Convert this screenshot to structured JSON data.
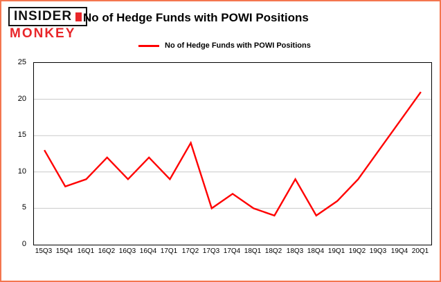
{
  "logo": {
    "line1": "INSIDER",
    "line2": "MONKEY"
  },
  "header": {
    "title": "No of Hedge Funds with POWI Positions"
  },
  "legend": {
    "label": "No of Hedge Funds with POWI Positions"
  },
  "colors": {
    "page_border": "#f4764f",
    "line": "#ff0000",
    "grid": "#c9c9c9",
    "plot_border": "#000000",
    "logo_red": "#e8262a"
  },
  "chart_data": {
    "type": "line",
    "title": "No of Hedge Funds with POWI Positions",
    "series_name": "No of Hedge Funds with POWI Positions",
    "categories": [
      "15Q3",
      "15Q4",
      "16Q1",
      "16Q2",
      "16Q3",
      "16Q4",
      "17Q1",
      "17Q2",
      "17Q3",
      "17Q4",
      "18Q1",
      "18Q2",
      "18Q3",
      "18Q4",
      "19Q1",
      "19Q2",
      "19Q3",
      "19Q4",
      "20Q1"
    ],
    "values": [
      13,
      8,
      9,
      12,
      9,
      12,
      9,
      14,
      5,
      7,
      5,
      4,
      9,
      4,
      6,
      9,
      13,
      17,
      21
    ],
    "ylim": [
      0,
      25
    ],
    "y_ticks": [
      0,
      5,
      10,
      15,
      20,
      25
    ],
    "xlabel": "",
    "ylabel": "",
    "grid": true,
    "legend_position": "top",
    "line_color": "#ff0000"
  }
}
